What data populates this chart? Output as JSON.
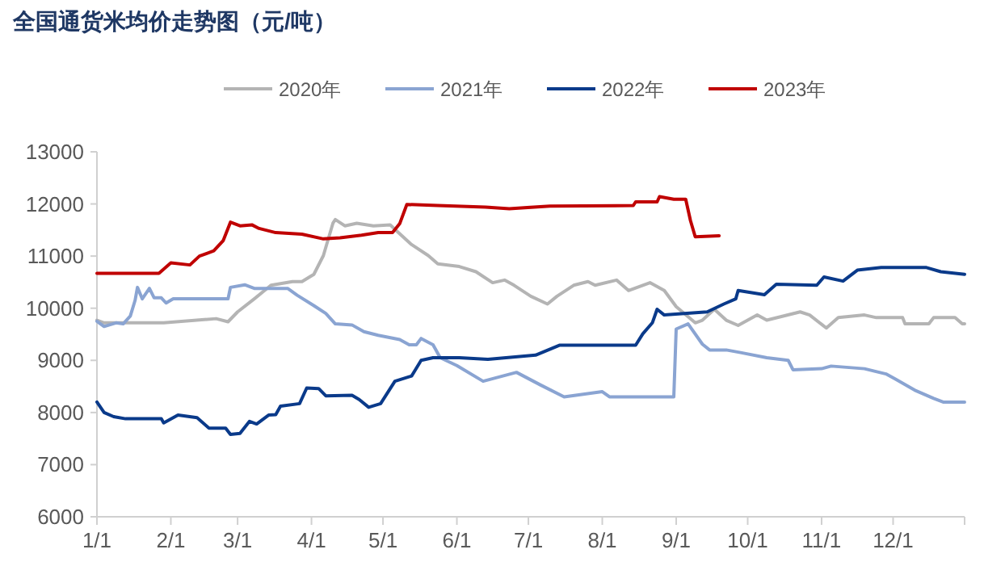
{
  "chart_data": {
    "type": "line",
    "title": "全国通货米均价走势图（元/吨）",
    "legend": "top",
    "xlim": [
      "--01-01",
      "--12-31"
    ],
    "ylim": [
      6000,
      13000
    ],
    "xticks": [
      {
        "value": "--01-01",
        "label": "1/1"
      },
      {
        "value": "--02-01",
        "label": "2/1"
      },
      {
        "value": "--03-01",
        "label": "3/1"
      },
      {
        "value": "--04-01",
        "label": "4/1"
      },
      {
        "value": "--05-01",
        "label": "5/1"
      },
      {
        "value": "--06-01",
        "label": "6/1"
      },
      {
        "value": "--07-01",
        "label": "7/1"
      },
      {
        "value": "--08-01",
        "label": "8/1"
      },
      {
        "value": "--09-01",
        "label": "9/1"
      },
      {
        "value": "--10-01",
        "label": "10/1"
      },
      {
        "value": "--11-01",
        "label": "11/1"
      },
      {
        "value": "--12-01",
        "label": "12/1"
      },
      {
        "value": "--12-31",
        "label": null
      }
    ],
    "yticks": [
      6000,
      7000,
      8000,
      9000,
      10000,
      11000,
      12000,
      13000
    ],
    "series": [
      {
        "name": "2020年",
        "color": "#b4b4b4",
        "x": [
          "--01-01",
          "--01-04",
          "--01-29",
          "--02-20",
          "--02-25",
          "--03-01",
          "--03-08",
          "--03-15",
          "--03-24",
          "--03-28",
          "--04-02",
          "--04-06",
          "--04-10",
          "--04-11",
          "--04-15",
          "--04-20",
          "--04-27",
          "--05-04",
          "--05-07",
          "--05-13",
          "--05-20",
          "--05-24",
          "--06-02",
          "--06-09",
          "--06-16",
          "--06-21",
          "--06-25",
          "--07-02",
          "--07-09",
          "--07-13",
          "--07-20",
          "--07-26",
          "--07-29",
          "--08-07",
          "--08-12",
          "--08-21",
          "--08-27",
          "--09-01",
          "--09-09",
          "--09-12",
          "--09-17",
          "--09-22",
          "--09-27",
          "--10-05",
          "--10-09",
          "--10-23",
          "--10-27",
          "--11-03",
          "--11-08",
          "--11-19",
          "--11-24",
          "--12-05",
          "--12-06",
          "--12-16",
          "--12-18",
          "--12-27",
          "--12-30",
          "--12-31"
        ],
        "values": [
          9770,
          9720,
          9720,
          9800,
          9740,
          9930,
          10180,
          10440,
          10510,
          10510,
          10650,
          11010,
          11630,
          11700,
          11580,
          11630,
          11580,
          11600,
          11470,
          11220,
          11010,
          10850,
          10800,
          10700,
          10490,
          10540,
          10440,
          10230,
          10080,
          10230,
          10440,
          10510,
          10440,
          10540,
          10340,
          10490,
          10340,
          10030,
          9720,
          9770,
          9980,
          9770,
          9670,
          9870,
          9770,
          9930,
          9870,
          9620,
          9820,
          9870,
          9820,
          9820,
          9700,
          9700,
          9820,
          9820,
          9700,
          9700
        ]
      },
      {
        "name": "2021年",
        "color": "#8aa4d2",
        "x": [
          "--01-01",
          "--01-04",
          "--01-09",
          "--01-12",
          "--01-15",
          "--01-17",
          "--01-18",
          "--01-20",
          "--01-23",
          "--01-25",
          "--01-28",
          "--01-30",
          "--02-02",
          "--02-25",
          "--02-26",
          "--03-04",
          "--03-08",
          "--03-22",
          "--03-26",
          "--04-02",
          "--04-07",
          "--04-11",
          "--04-18",
          "--04-23",
          "--04-29",
          "--05-08",
          "--05-12",
          "--05-15",
          "--05-17",
          "--05-22",
          "--05-25",
          "--06-01",
          "--06-12",
          "--06-26",
          "--07-06",
          "--07-16",
          "--08-01",
          "--08-04",
          "--08-31",
          "--09-01",
          "--09-06",
          "--09-12",
          "--09-15",
          "--09-22",
          "--09-28",
          "--10-09",
          "--10-18",
          "--10-20",
          "--11-01",
          "--11-05",
          "--11-19",
          "--11-28",
          "--12-02",
          "--12-10",
          "--12-18",
          "--12-22",
          "--12-31"
        ],
        "values": [
          9750,
          9650,
          9720,
          9700,
          9850,
          10150,
          10400,
          10180,
          10380,
          10200,
          10200,
          10100,
          10180,
          10180,
          10400,
          10450,
          10380,
          10380,
          10250,
          10050,
          9900,
          9700,
          9680,
          9550,
          9480,
          9400,
          9300,
          9300,
          9420,
          9300,
          9050,
          8900,
          8600,
          8770,
          8530,
          8300,
          8400,
          8300,
          8300,
          9600,
          9700,
          9310,
          9200,
          9200,
          9150,
          9050,
          9000,
          8820,
          8840,
          8890,
          8840,
          8740,
          8640,
          8430,
          8270,
          8200,
          8200
        ]
      },
      {
        "name": "2022年",
        "color": "#0a3a8a",
        "x": [
          "--01-01",
          "--01-04",
          "--01-08",
          "--01-13",
          "--01-28",
          "--01-29",
          "--02-04",
          "--02-12",
          "--02-17",
          "--02-24",
          "--02-26",
          "--03-02",
          "--03-06",
          "--03-09",
          "--03-14",
          "--03-17",
          "--03-19",
          "--03-27",
          "--03-30",
          "--04-04",
          "--04-07",
          "--04-18",
          "--04-21",
          "--04-25",
          "--04-30",
          "--05-06",
          "--05-13",
          "--05-17",
          "--05-22",
          "--06-02",
          "--06-14",
          "--07-04",
          "--07-14",
          "--08-15",
          "--08-18",
          "--08-22",
          "--08-24",
          "--08-27",
          "--09-14",
          "--09-21",
          "--09-26",
          "--09-27",
          "--10-08",
          "--10-13",
          "--10-30",
          "--11-02",
          "--11-10",
          "--11-16",
          "--11-26",
          "--12-15",
          "--12-21",
          "--12-31"
        ],
        "values": [
          8200,
          8000,
          7920,
          7880,
          7880,
          7800,
          7950,
          7900,
          7700,
          7700,
          7580,
          7600,
          7830,
          7780,
          7950,
          7960,
          8120,
          8170,
          8470,
          8460,
          8320,
          8330,
          8250,
          8100,
          8170,
          8600,
          8700,
          9000,
          9050,
          9050,
          9020,
          9100,
          9290,
          9290,
          9510,
          9720,
          9980,
          9870,
          9930,
          10080,
          10180,
          10340,
          10260,
          10460,
          10440,
          10600,
          10520,
          10730,
          10780,
          10780,
          10700,
          10650
        ]
      },
      {
        "name": "2023年",
        "color": "#c00000",
        "x": [
          "--01-01",
          "--01-27",
          "--02-01",
          "--02-09",
          "--02-13",
          "--02-19",
          "--02-23",
          "--02-26",
          "--03-02",
          "--03-07",
          "--03-10",
          "--03-17",
          "--03-28",
          "--04-06",
          "--04-13",
          "--04-22",
          "--04-29",
          "--05-05",
          "--05-08",
          "--05-11",
          "--05-24",
          "--06-13",
          "--06-23",
          "--07-10",
          "--08-14",
          "--08-15",
          "--08-24",
          "--08-25",
          "--08-31",
          "--09-05",
          "--09-07",
          "--09-09",
          "--09-19"
        ],
        "values": [
          10670,
          10670,
          10870,
          10830,
          11000,
          11100,
          11300,
          11650,
          11580,
          11600,
          11530,
          11450,
          11420,
          11330,
          11350,
          11400,
          11450,
          11450,
          11620,
          11990,
          11970,
          11940,
          11910,
          11960,
          11970,
          12040,
          12040,
          12140,
          12090,
          12090,
          11680,
          11370,
          11390
        ]
      }
    ]
  }
}
